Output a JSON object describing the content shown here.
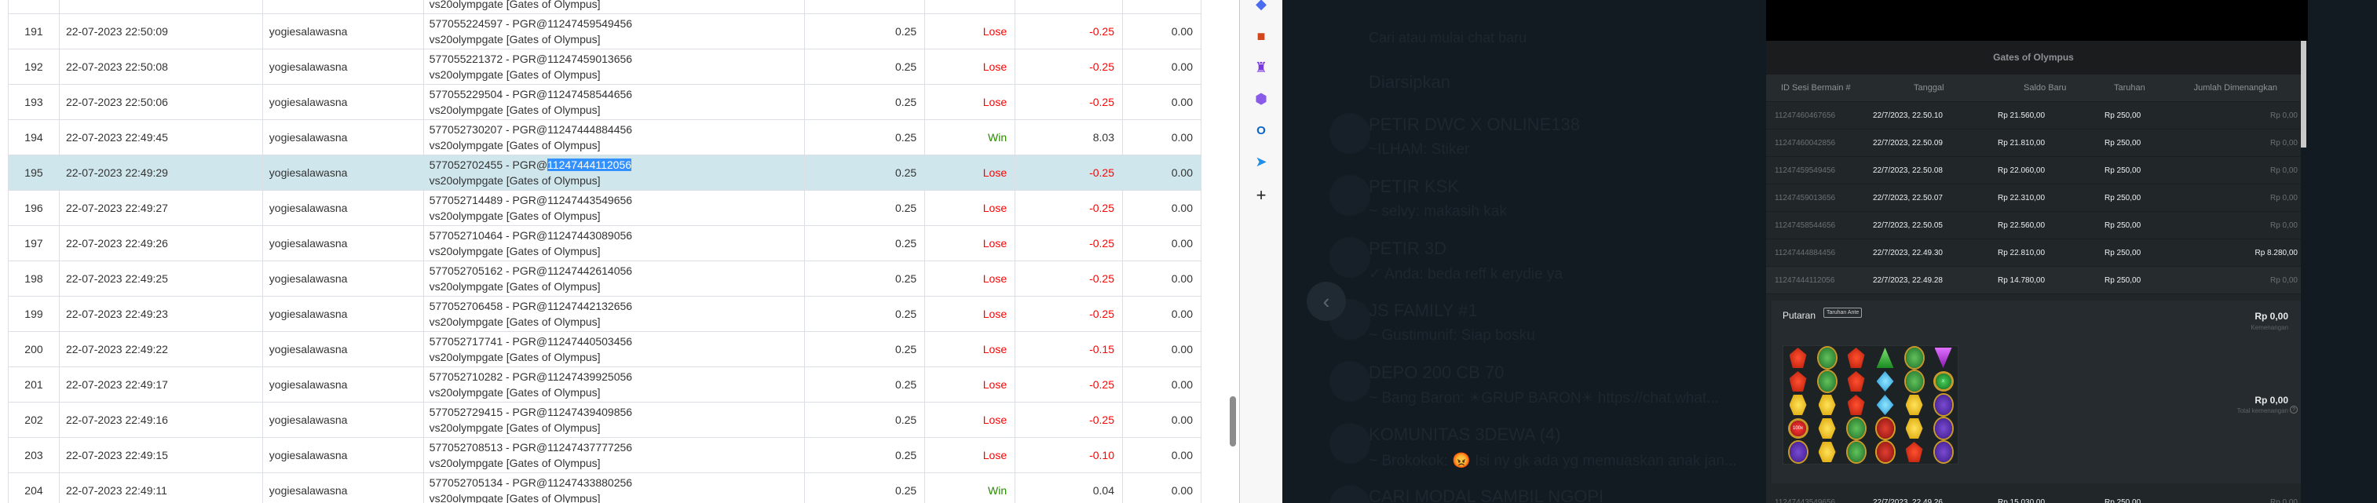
{
  "left_table": {
    "partial_row": {
      "desc2": "vs20olympgate [Gates of Olympus]"
    },
    "rows": [
      {
        "no": "191",
        "date": "22-07-2023 22:50:09",
        "user": "yogiesalawasna",
        "desc1_a": "577055224597 - PGR@11247459549456",
        "desc1_sel": "",
        "desc2": "vs20olympgate [Gates of Olympus]",
        "bet": "0.25",
        "result": "Lose",
        "amount": "-0.25",
        "extra": "0.00"
      },
      {
        "no": "192",
        "date": "22-07-2023 22:50:08",
        "user": "yogiesalawasna",
        "desc1_a": "577055221372 - PGR@11247459013656",
        "desc1_sel": "",
        "desc2": "vs20olympgate [Gates of Olympus]",
        "bet": "0.25",
        "result": "Lose",
        "amount": "-0.25",
        "extra": "0.00"
      },
      {
        "no": "193",
        "date": "22-07-2023 22:50:06",
        "user": "yogiesalawasna",
        "desc1_a": "577055229504 - PGR@11247458544656",
        "desc1_sel": "",
        "desc2": "vs20olympgate [Gates of Olympus]",
        "bet": "0.25",
        "result": "Lose",
        "amount": "-0.25",
        "extra": "0.00"
      },
      {
        "no": "194",
        "date": "22-07-2023 22:49:45",
        "user": "yogiesalawasna",
        "desc1_a": "577052730207 - PGR@11247444884456",
        "desc1_sel": "",
        "desc2": "vs20olympgate [Gates of Olympus]",
        "bet": "0.25",
        "result": "Win",
        "amount": "8.03",
        "extra": "0.00"
      },
      {
        "no": "195",
        "date": "22-07-2023 22:49:29",
        "user": "yogiesalawasna",
        "desc1_a": "577052702455 - PGR@",
        "desc1_sel": "11247444112056",
        "desc2": "vs20olympgate [Gates of Olympus]",
        "bet": "0.25",
        "result": "Lose",
        "amount": "-0.25",
        "extra": "0.00",
        "highlighted": true
      },
      {
        "no": "196",
        "date": "22-07-2023 22:49:27",
        "user": "yogiesalawasna",
        "desc1_a": "577052714489 - PGR@11247443549656",
        "desc1_sel": "",
        "desc2": "vs20olympgate [Gates of Olympus]",
        "bet": "0.25",
        "result": "Lose",
        "amount": "-0.25",
        "extra": "0.00"
      },
      {
        "no": "197",
        "date": "22-07-2023 22:49:26",
        "user": "yogiesalawasna",
        "desc1_a": "577052710464 - PGR@11247443089056",
        "desc1_sel": "",
        "desc2": "vs20olympgate [Gates of Olympus]",
        "bet": "0.25",
        "result": "Lose",
        "amount": "-0.25",
        "extra": "0.00"
      },
      {
        "no": "198",
        "date": "22-07-2023 22:49:25",
        "user": "yogiesalawasna",
        "desc1_a": "577052705162 - PGR@11247442614056",
        "desc1_sel": "",
        "desc2": "vs20olympgate [Gates of Olympus]",
        "bet": "0.25",
        "result": "Lose",
        "amount": "-0.25",
        "extra": "0.00"
      },
      {
        "no": "199",
        "date": "22-07-2023 22:49:23",
        "user": "yogiesalawasna",
        "desc1_a": "577052706458 - PGR@11247442132656",
        "desc1_sel": "",
        "desc2": "vs20olympgate [Gates of Olympus]",
        "bet": "0.25",
        "result": "Lose",
        "amount": "-0.25",
        "extra": "0.00"
      },
      {
        "no": "200",
        "date": "22-07-2023 22:49:22",
        "user": "yogiesalawasna",
        "desc1_a": "577052717741 - PGR@11247440503456",
        "desc1_sel": "",
        "desc2": "vs20olympgate [Gates of Olympus]",
        "bet": "0.25",
        "result": "Lose",
        "amount": "-0.15",
        "extra": "0.00"
      },
      {
        "no": "201",
        "date": "22-07-2023 22:49:17",
        "user": "yogiesalawasna",
        "desc1_a": "577052710282 - PGR@11247439925056",
        "desc1_sel": "",
        "desc2": "vs20olympgate [Gates of Olympus]",
        "bet": "0.25",
        "result": "Lose",
        "amount": "-0.25",
        "extra": "0.00"
      },
      {
        "no": "202",
        "date": "22-07-2023 22:49:16",
        "user": "yogiesalawasna",
        "desc1_a": "577052729415 - PGR@11247439409856",
        "desc1_sel": "",
        "desc2": "vs20olympgate [Gates of Olympus]",
        "bet": "0.25",
        "result": "Lose",
        "amount": "-0.25",
        "extra": "0.00"
      },
      {
        "no": "203",
        "date": "22-07-2023 22:49:15",
        "user": "yogiesalawasna",
        "desc1_a": "577052708513 - PGR@11247437777256",
        "desc1_sel": "",
        "desc2": "vs20olympgate [Gates of Olympus]",
        "bet": "0.25",
        "result": "Lose",
        "amount": "-0.10",
        "extra": "0.00"
      },
      {
        "no": "204",
        "date": "22-07-2023 22:49:11",
        "user": "yogiesalawasna",
        "desc1_a": "577052705134 - PGR@11247433880256",
        "desc1_sel": "",
        "desc2": "vs20olympgate [Gates of Olympus]",
        "bet": "0.25",
        "result": "Win",
        "amount": "0.04",
        "extra": "0.00"
      }
    ]
  },
  "colors": {
    "lose": "#ff0000",
    "win": "#2a8a00",
    "highlight_row": "#cfe6ec",
    "selection": "#3390ff"
  },
  "sidebar_icons": [
    "tag-icon",
    "toolbox-icon",
    "chess-icon",
    "copilot-icon",
    "outlook-icon",
    "send-icon",
    "plus-icon"
  ],
  "chat_list": {
    "search_placeholder": "Cari atau mulai chat baru",
    "archived": "Diarsipkan",
    "items": [
      {
        "name": "PETIR DWC X ONLINE138",
        "preview": "~ILHAM: Stiker"
      },
      {
        "name": "PETIR KSK",
        "preview": "~ selvy: makasih kak"
      },
      {
        "name": "PETIR 3D",
        "preview": "✓ Anda: beda reff k erydie ya"
      },
      {
        "name": "JS FAMILY #1",
        "preview": "~ Gustimunif: Siap bosku"
      },
      {
        "name": "DEPO 200 CB 70",
        "preview": "~ Bang Baron: ✳GRUP BARON✳ https://chat.what..."
      },
      {
        "name": "KOMUNITAS 3DEWA (4)",
        "preview": "~ Brokokok: 😡 Isi ny gk ada yg memuaskan anak jan..."
      },
      {
        "name": "CARI MODAL SAMBIL NGOPI",
        "preview": ""
      }
    ]
  },
  "history_panel": {
    "title": "Gates of Olympus",
    "headers": [
      "ID Sesi Bermain #",
      "Tanggal",
      "Saldo Baru",
      "Taruhan",
      "Jumlah Dimenangkan"
    ],
    "rows": [
      [
        "11247460467656",
        "22/7/2023, 22.50.10",
        "Rp 21.560,00",
        "Rp 250,00",
        "Rp 0,00"
      ],
      [
        "11247460042856",
        "22/7/2023, 22.50.09",
        "Rp 21.810,00",
        "Rp 250,00",
        "Rp 0,00"
      ],
      [
        "11247459549456",
        "22/7/2023, 22.50.08",
        "Rp 22.060,00",
        "Rp 250,00",
        "Rp 0,00"
      ],
      [
        "11247459013656",
        "22/7/2023, 22.50.07",
        "Rp 22.310,00",
        "Rp 250,00",
        "Rp 0,00"
      ],
      [
        "11247458544656",
        "22/7/2023, 22.50.05",
        "Rp 22.560,00",
        "Rp 250,00",
        "Rp 0,00"
      ],
      [
        "11247444884456",
        "22/7/2023, 22.49.30",
        "Rp 22.810,00",
        "Rp 250,00",
        "Rp 8.280,00"
      ],
      [
        "11247444112056",
        "22/7/2023, 22.49.28",
        "Rp 14.780,00",
        "Rp 250,00",
        "Rp 0,00"
      ]
    ],
    "detail": {
      "round_label": "Putaran",
      "ante_badge": "Taruhan Ante",
      "win_value": "Rp 0,00",
      "win_label": "Kemenangan",
      "total_value": "Rp 0,00",
      "total_label": "Total kemenangan",
      "grid": [
        [
          "red",
          "green",
          "red",
          "gtri",
          "green",
          "ptri"
        ],
        [
          "red",
          "green",
          "red",
          "blue",
          "green",
          "orbg"
        ],
        [
          "yellow",
          "yellow",
          "red",
          "blue",
          "yellow",
          "purple"
        ],
        [
          "orbr",
          "yellow",
          "green",
          "crown",
          "yellow",
          "purple"
        ],
        [
          "purple",
          "yellow",
          "green",
          "crown",
          "red",
          "purple"
        ]
      ],
      "multiplier_labels": {
        "orbg": "x",
        "orbr": "100x"
      }
    },
    "next_row": [
      "11247443549656",
      "22/7/2023, 22.49.26",
      "Rp 15.030,00",
      "Rp 250,00",
      "Rp 0,00"
    ]
  }
}
